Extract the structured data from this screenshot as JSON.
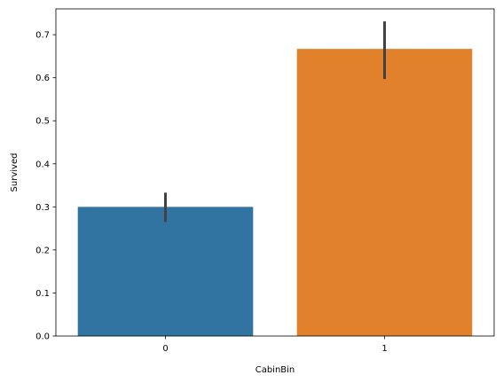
{
  "chart_data": {
    "type": "bar",
    "categories": [
      "0",
      "1"
    ],
    "values": [
      0.3,
      0.667
    ],
    "error_bars": [
      [
        0.265,
        0.333
      ],
      [
        0.597,
        0.731
      ]
    ],
    "colors": [
      "#3274a1",
      "#e1812c"
    ],
    "error_color": "#424242",
    "xlabel": "CabinBin",
    "ylabel": "Survived",
    "ylim": [
      0,
      0.76
    ],
    "yticks": [
      0.0,
      0.1,
      0.2,
      0.3,
      0.4,
      0.5,
      0.6,
      0.7
    ],
    "ytick_labels": [
      "0.0",
      "0.1",
      "0.2",
      "0.3",
      "0.4",
      "0.5",
      "0.6",
      "0.7"
    ],
    "grid": false,
    "legend": "none"
  }
}
